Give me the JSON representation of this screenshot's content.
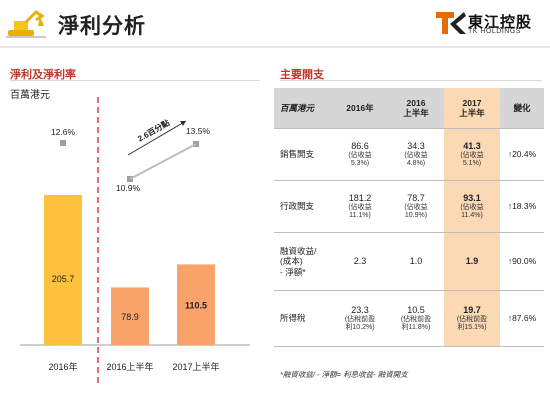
{
  "page": {
    "title": "淨利分析"
  },
  "brand": {
    "name": "東江控股",
    "sub": "TK HOLDINGS",
    "mark": "TK"
  },
  "left": {
    "title": "淨利及淨利率",
    "unit": "百萬港元",
    "annotation": "2.6百分點"
  },
  "chart_data": {
    "type": "bar",
    "categories": [
      "2016年",
      "2016上半年",
      "2017上半年"
    ],
    "series": [
      {
        "values": [
          205.7,
          78.9,
          110.5
        ],
        "labels": [
          "205.7",
          "78.9",
          "110.5"
        ]
      }
    ],
    "margins": [
      12.6,
      10.9,
      13.5
    ],
    "margin_labels": [
      "12.6%",
      "10.9%",
      "13.5%"
    ],
    "colors": {
      "bar_2016": "#fdc23d",
      "bar_half": "#f9a36b",
      "marker": "#9e9e9e"
    }
  },
  "right": {
    "title": "主要開支",
    "headers": [
      "百萬港元",
      "2016年",
      "2016\n上半年",
      "2017\n上半年",
      "變化"
    ],
    "rows": [
      {
        "name": "銷售開支",
        "c2016": "86.6",
        "c2016n": "(佔收益\n5.3%)",
        "h2016": "34.3",
        "h2016n": "(佔收益\n4.8%)",
        "h2017": "41.3",
        "h2017n": "(佔收益\n5.1%)",
        "change": "↑20.4%"
      },
      {
        "name": "行政開支",
        "c2016": "181.2",
        "c2016n": "(佔收益\n11.1%)",
        "h2016": "78.7",
        "h2016n": "(佔收益\n10.9%)",
        "h2017": "93.1",
        "h2017n": "(佔收益\n11.4%)",
        "change": "↑18.3%"
      },
      {
        "name": "融資收益/\n(成本)\n- 淨額*",
        "c2016": "2.3",
        "c2016n": "",
        "h2016": "1.0",
        "h2016n": "",
        "h2017": "1.9",
        "h2017n": "",
        "change": "↑90.0%"
      },
      {
        "name": "所得稅",
        "c2016": "23.3",
        "c2016n": "(佔稅前盈\n利10.2%)",
        "h2016": "10.5",
        "h2016n": "(佔稅前盈\n利11.8%)",
        "h2017": "19.7",
        "h2017n": "(佔稅前盈\n利15.1%)",
        "change": "↑87.6%"
      }
    ],
    "footnote": "*融資收益/ - 淨額= 利息收益- 融資開支"
  }
}
